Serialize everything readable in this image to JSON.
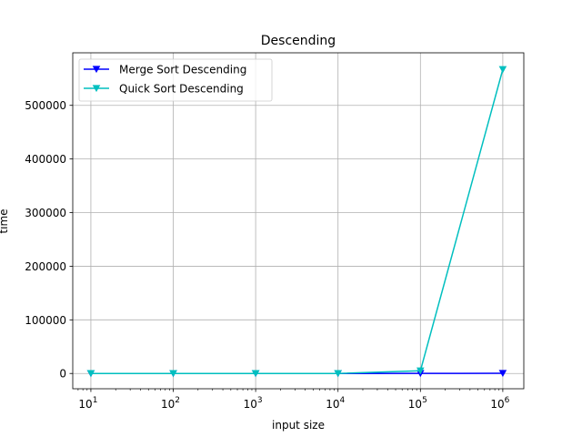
{
  "chart_data": {
    "type": "line",
    "title": "Descending",
    "xlabel": "input size",
    "ylabel": "time",
    "x_scale": "log",
    "x": [
      10,
      100,
      1000,
      10000,
      100000,
      1000000
    ],
    "x_tick_labels": [
      {
        "base": "10",
        "exp": "1"
      },
      {
        "base": "10",
        "exp": "2"
      },
      {
        "base": "10",
        "exp": "3"
      },
      {
        "base": "10",
        "exp": "4"
      },
      {
        "base": "10",
        "exp": "5"
      },
      {
        "base": "10",
        "exp": "6"
      }
    ],
    "y_ticks": [
      0,
      100000,
      200000,
      300000,
      400000,
      500000
    ],
    "y_tick_labels": [
      "0",
      "100000",
      "200000",
      "300000",
      "400000",
      "500000"
    ],
    "ylim": [
      -28500,
      598000
    ],
    "xlim_log10": [
      0.78,
      6.255
    ],
    "grid": true,
    "legend_position": "top-left",
    "series": [
      {
        "name": "Merge Sort Descending",
        "color": "#0000ff",
        "marker": "triangle-down",
        "values": [
          0,
          0,
          0,
          0,
          150,
          350
        ]
      },
      {
        "name": "Quick Sort Descending",
        "color": "#00bfbf",
        "marker": "triangle-down",
        "values": [
          0,
          0,
          0,
          0,
          5000,
          567000
        ]
      }
    ]
  }
}
